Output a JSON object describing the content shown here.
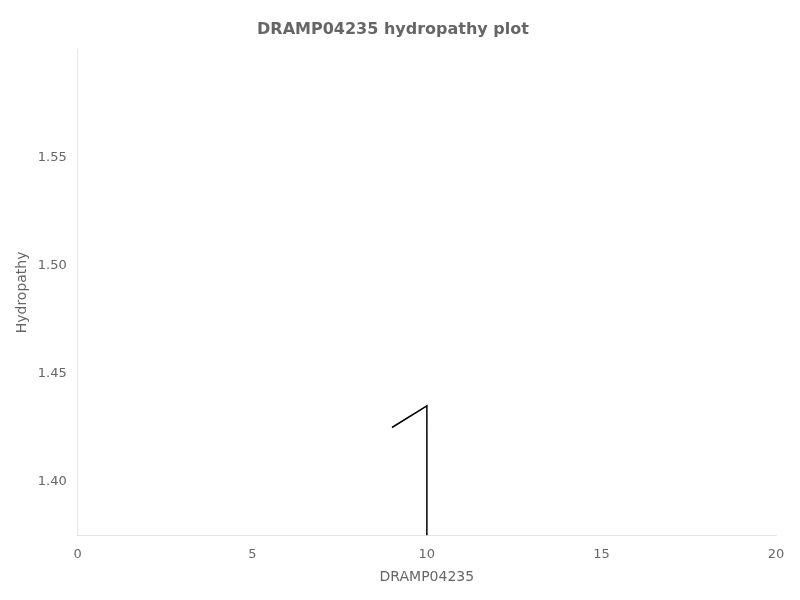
{
  "chart_data": {
    "type": "line",
    "title": "DRAMP04235 hydropathy plot",
    "xlabel": "DRAMP04235",
    "ylabel": "Hydropathy",
    "x": [
      9.0,
      10.0,
      10.0
    ],
    "values": [
      1.425,
      1.435,
      1.375
    ],
    "color": "#000000",
    "xlim": [
      0,
      20
    ],
    "xticks": [
      0,
      5,
      10,
      15,
      20
    ],
    "ylim": [
      1.375,
      1.6
    ],
    "yticks": [
      {
        "value": 1.4,
        "label": "1.40"
      },
      {
        "value": 1.45,
        "label": "1.45"
      },
      {
        "value": 1.5,
        "label": "1.50"
      },
      {
        "value": 1.55,
        "label": "1.55"
      }
    ],
    "grid": false
  }
}
